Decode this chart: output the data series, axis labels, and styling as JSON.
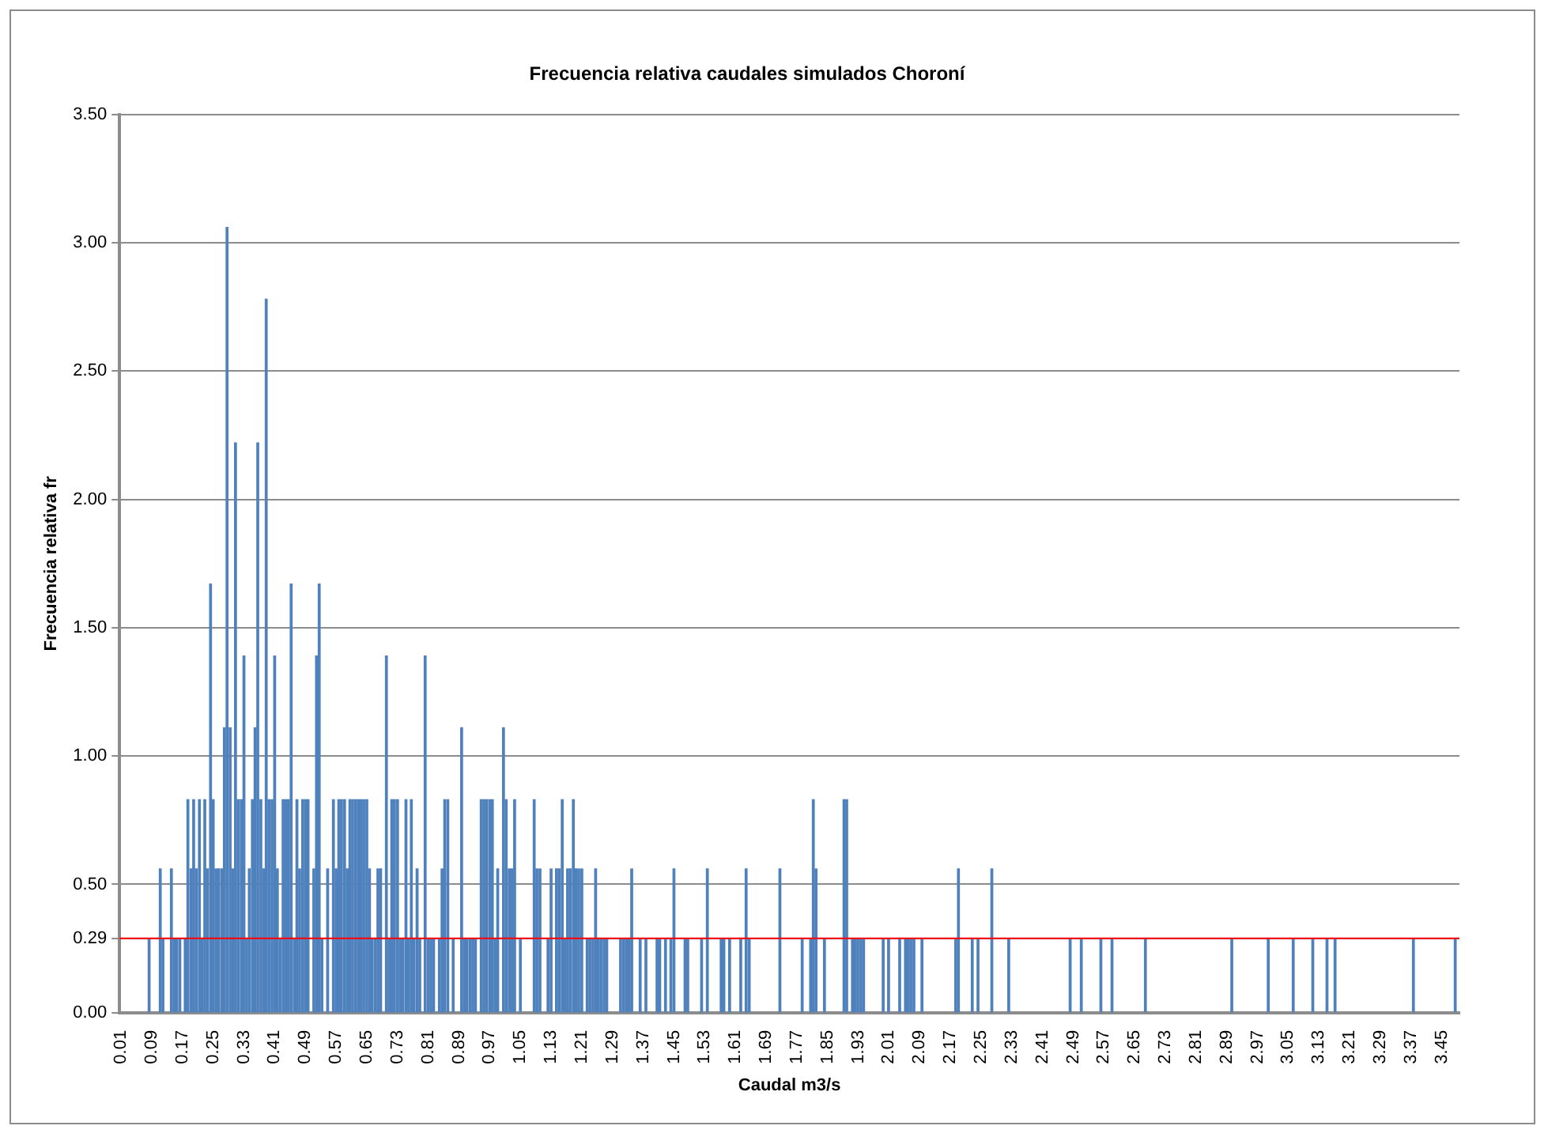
{
  "chart_data": {
    "type": "bar",
    "title": "Frecuencia relativa caudales simulados Choroní",
    "xlabel": "Caudal m3/s",
    "ylabel": "Frecuencia relativa fr",
    "x": [
      0.083,
      0.112,
      0.119,
      0.141,
      0.148,
      0.155,
      0.163,
      0.177,
      0.184,
      0.192,
      0.199,
      0.206,
      0.214,
      0.221,
      0.228,
      0.235,
      0.243,
      0.25,
      0.257,
      0.264,
      0.272,
      0.279,
      0.286,
      0.294,
      0.301,
      0.308,
      0.315,
      0.323,
      0.33,
      0.337,
      0.344,
      0.352,
      0.359,
      0.366,
      0.374,
      0.381,
      0.388,
      0.395,
      0.403,
      0.41,
      0.417,
      0.424,
      0.432,
      0.439,
      0.446,
      0.453,
      0.461,
      0.468,
      0.475,
      0.483,
      0.49,
      0.497,
      0.512,
      0.519,
      0.526,
      0.533,
      0.548,
      0.563,
      0.57,
      0.577,
      0.584,
      0.592,
      0.599,
      0.606,
      0.613,
      0.621,
      0.628,
      0.635,
      0.642,
      0.65,
      0.657,
      0.664,
      0.672,
      0.679,
      0.686,
      0.701,
      0.708,
      0.715,
      0.722,
      0.73,
      0.737,
      0.744,
      0.752,
      0.759,
      0.766,
      0.773,
      0.781,
      0.788,
      0.802,
      0.81,
      0.817,
      0.824,
      0.839,
      0.846,
      0.853,
      0.861,
      0.875,
      0.897,
      0.904,
      0.911,
      0.919,
      0.926,
      0.933,
      0.948,
      0.955,
      0.962,
      0.97,
      0.977,
      0.984,
      0.991,
      1.006,
      1.013,
      1.021,
      1.028,
      1.035,
      1.05,
      1.086,
      1.093,
      1.101,
      1.122,
      1.13,
      1.144,
      1.151,
      1.159,
      1.166,
      1.173,
      1.18,
      1.188,
      1.195,
      1.202,
      1.21,
      1.224,
      1.231,
      1.239,
      1.246,
      1.253,
      1.26,
      1.268,
      1.275,
      1.311,
      1.319,
      1.326,
      1.333,
      1.34,
      1.362,
      1.377,
      1.406,
      1.413,
      1.428,
      1.442,
      1.45,
      1.479,
      1.486,
      1.522,
      1.537,
      1.573,
      1.58,
      1.595,
      1.624,
      1.638,
      1.646,
      1.726,
      1.784,
      1.806,
      1.813,
      1.82,
      1.842,
      1.893,
      1.9,
      1.915,
      1.922,
      1.929,
      1.937,
      1.944,
      1.995,
      2.009,
      2.038,
      2.053,
      2.06,
      2.067,
      2.075,
      2.096,
      2.184,
      2.191,
      2.227,
      2.242,
      2.278,
      2.322,
      2.482,
      2.511,
      2.562,
      2.591,
      2.678,
      2.903,
      2.998,
      3.063,
      3.114,
      3.151,
      3.172,
      3.376,
      3.485
    ],
    "values": [
      0.29,
      0.56,
      0.29,
      0.56,
      0.29,
      0.29,
      0.29,
      0.29,
      0.83,
      0.56,
      0.83,
      0.56,
      0.83,
      0.29,
      0.83,
      0.56,
      1.67,
      0.83,
      0.56,
      0.56,
      0.56,
      1.11,
      3.06,
      1.11,
      0.56,
      2.22,
      0.83,
      0.83,
      1.39,
      0.29,
      0.56,
      0.83,
      1.11,
      2.22,
      0.83,
      0.56,
      2.78,
      0.83,
      0.83,
      1.39,
      0.56,
      0.29,
      0.83,
      0.83,
      0.83,
      1.67,
      0.29,
      0.83,
      0.56,
      0.83,
      0.83,
      0.83,
      0.56,
      1.39,
      1.67,
      0.29,
      0.56,
      0.83,
      0.56,
      0.83,
      0.83,
      0.83,
      0.56,
      0.83,
      0.83,
      0.83,
      0.83,
      0.83,
      0.83,
      0.83,
      0.56,
      0.29,
      0.29,
      0.56,
      0.56,
      1.39,
      0.29,
      0.83,
      0.83,
      0.83,
      0.29,
      0.29,
      0.83,
      0.29,
      0.83,
      0.29,
      0.56,
      0.29,
      1.39,
      0.29,
      0.29,
      0.29,
      0.29,
      0.56,
      0.83,
      0.83,
      0.29,
      1.11,
      0.29,
      0.29,
      0.29,
      0.29,
      0.29,
      0.83,
      0.83,
      0.83,
      0.83,
      0.83,
      0.29,
      0.56,
      1.11,
      0.83,
      0.56,
      0.56,
      0.83,
      0.29,
      0.83,
      0.56,
      0.56,
      0.29,
      0.56,
      0.56,
      0.56,
      0.83,
      0.29,
      0.56,
      0.56,
      0.83,
      0.56,
      0.56,
      0.56,
      0.29,
      0.29,
      0.29,
      0.56,
      0.29,
      0.29,
      0.29,
      0.29,
      0.29,
      0.29,
      0.29,
      0.29,
      0.56,
      0.29,
      0.29,
      0.29,
      0.29,
      0.29,
      0.29,
      0.56,
      0.29,
      0.29,
      0.29,
      0.56,
      0.29,
      0.29,
      0.29,
      0.29,
      0.56,
      0.29,
      0.56,
      0.29,
      0.29,
      0.83,
      0.56,
      0.29,
      0.83,
      0.83,
      0.29,
      0.29,
      0.29,
      0.29,
      0.29,
      0.29,
      0.29,
      0.29,
      0.29,
      0.29,
      0.29,
      0.29,
      0.29,
      0.29,
      0.56,
      0.29,
      0.29,
      0.56,
      0.29,
      0.29,
      0.29,
      0.29,
      0.29,
      0.29,
      0.29,
      0.29,
      0.29,
      0.29,
      0.29,
      0.29,
      0.29,
      0.29
    ],
    "color": "#4f81bd",
    "xlim": [
      0.006,
      3.496
    ],
    "xticks": [
      0.01,
      0.09,
      0.17,
      0.25,
      0.33,
      0.41,
      0.49,
      0.57,
      0.65,
      0.73,
      0.81,
      0.89,
      0.97,
      1.05,
      1.13,
      1.21,
      1.29,
      1.37,
      1.45,
      1.53,
      1.61,
      1.69,
      1.77,
      1.85,
      1.93,
      2.01,
      2.09,
      2.17,
      2.25,
      2.33,
      2.41,
      2.49,
      2.57,
      2.65,
      2.73,
      2.81,
      2.89,
      2.97,
      3.05,
      3.13,
      3.21,
      3.29,
      3.37,
      3.45
    ],
    "ylim": [
      0,
      3.5
    ],
    "yticks": [
      {
        "value": 0,
        "label": "0.00"
      },
      {
        "value": 0.29,
        "label": "0.29"
      },
      {
        "value": 0.5,
        "label": "0.50"
      },
      {
        "value": 1,
        "label": "1.00"
      },
      {
        "value": 1.5,
        "label": "1.50"
      },
      {
        "value": 2,
        "label": "2.00"
      },
      {
        "value": 2.5,
        "label": "2.50"
      },
      {
        "value": 3,
        "label": "3.00"
      },
      {
        "value": 3.5,
        "label": "3.50"
      }
    ],
    "ref_lines": [
      {
        "axis": "y",
        "value": 0.29,
        "color": "#ff0000"
      }
    ],
    "grid": "y"
  }
}
